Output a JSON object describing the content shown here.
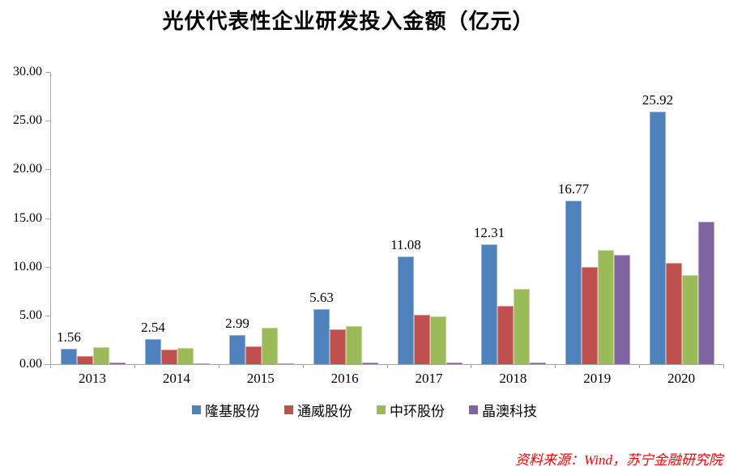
{
  "source_note": "资料来源：Wind，苏宁金融研究院",
  "chart_data": {
    "type": "bar",
    "title": "光伏代表性企业研发投入金额（亿元）",
    "xlabel": "",
    "ylabel": "",
    "categories": [
      "2013",
      "2014",
      "2015",
      "2016",
      "2017",
      "2018",
      "2019",
      "2020"
    ],
    "series": [
      {
        "name": "隆基股份",
        "color": "#4f81bd",
        "edge_color": "#95b3d7",
        "values": [
          1.56,
          2.54,
          2.99,
          5.63,
          11.08,
          12.31,
          16.77,
          25.92
        ],
        "value_labels": [
          "1.56",
          "2.54",
          "2.99",
          "5.63",
          "11.08",
          "12.31",
          "16.77",
          "25.92"
        ]
      },
      {
        "name": "通威股份",
        "color": "#c0504d",
        "edge_color": "#d99694",
        "values": [
          0.8,
          1.5,
          1.85,
          3.6,
          5.1,
          6.0,
          10.0,
          10.4
        ]
      },
      {
        "name": "中环股份",
        "color": "#9bbb59",
        "edge_color": "#c3d69b",
        "values": [
          1.75,
          1.7,
          3.7,
          3.9,
          4.9,
          7.7,
          11.7,
          9.1
        ]
      },
      {
        "name": "晶澳科技",
        "color": "#8064a2",
        "edge_color": "#b3a2c7",
        "values": [
          0.15,
          0.1,
          0.1,
          0.2,
          0.2,
          0.2,
          11.2,
          14.6
        ]
      }
    ],
    "ylim": [
      0,
      30
    ],
    "ytick_step": 5,
    "ytick_labels": [
      "0.00",
      "5.00",
      "10.00",
      "15.00",
      "20.00",
      "25.00",
      "30.00"
    ],
    "grid": false,
    "legend_position": "bottom",
    "axis_color": "#a6a6a6"
  }
}
